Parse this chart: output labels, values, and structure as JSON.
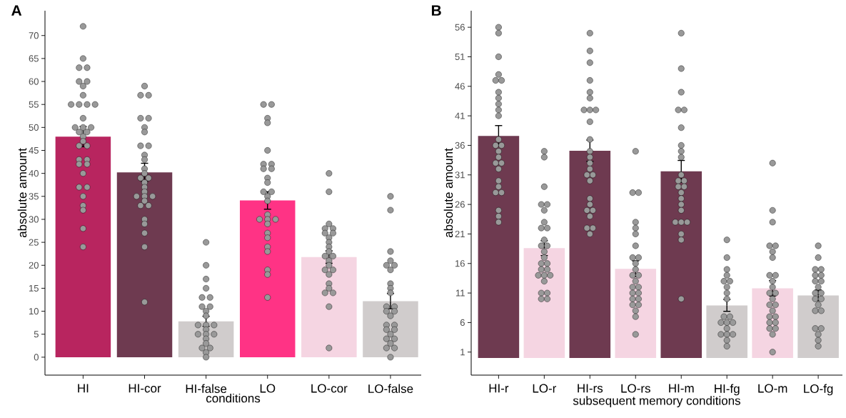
{
  "chart_data": [
    {
      "type": "bar",
      "title": "A",
      "xlabel": "conditions",
      "ylabel": "absolute amount",
      "categories": [
        "HI",
        "HI-cor",
        "HI-false",
        "LO",
        "LO-cor",
        "LO-false"
      ],
      "ylim": [
        -3.9,
        75.4
      ],
      "yticks": [
        0,
        5,
        10,
        15,
        20,
        25,
        30,
        35,
        40,
        45,
        50,
        55,
        60,
        65,
        70
      ],
      "series": [
        {
          "type": "bar",
          "values": [
            48,
            40.2,
            7.8,
            34.1,
            21.8,
            12.2
          ],
          "colors": [
            "#b8255f",
            "#6e3a50",
            "#d0cccc",
            "#ff3385",
            "#f5d5e2",
            "#d0cccc"
          ],
          "errors": [
            2.2,
            2,
            1.1,
            1.9,
            1.35,
            1.65
          ]
        },
        {
          "type": "scatter",
          "color": "#999999",
          "marker": "circle",
          "x": [
            "HI",
            "HI",
            "HI",
            "HI",
            "HI",
            "HI",
            "HI",
            "HI",
            "HI",
            "HI",
            "HI",
            "HI",
            "HI",
            "HI",
            "HI",
            "HI",
            "HI",
            "HI",
            "HI",
            "HI",
            "HI",
            "HI",
            "HI",
            "HI",
            "HI",
            "HI",
            "HI",
            "HI",
            "HI",
            "HI",
            "HI",
            "HI",
            "HI",
            "HI",
            "HI-cor",
            "HI-cor",
            "HI-cor",
            "HI-cor",
            "HI-cor",
            "HI-cor",
            "HI-cor",
            "HI-cor",
            "HI-cor",
            "HI-cor",
            "HI-cor",
            "HI-cor",
            "HI-cor",
            "HI-cor",
            "HI-cor",
            "HI-cor",
            "HI-cor",
            "HI-cor",
            "HI-cor",
            "HI-cor",
            "HI-cor",
            "HI-cor",
            "HI-cor",
            "HI-cor",
            "HI-cor",
            "HI-cor",
            "HI-cor",
            "HI-cor",
            "HI-cor",
            "HI-false",
            "HI-false",
            "HI-false",
            "HI-false",
            "HI-false",
            "HI-false",
            "HI-false",
            "HI-false",
            "HI-false",
            "HI-false",
            "HI-false",
            "HI-false",
            "HI-false",
            "HI-false",
            "HI-false",
            "HI-false",
            "HI-false",
            "HI-false",
            "HI-false",
            "HI-false",
            "HI-false",
            "HI-false",
            "HI-false",
            "LO",
            "LO",
            "LO",
            "LO",
            "LO",
            "LO",
            "LO",
            "LO",
            "LO",
            "LO",
            "LO",
            "LO",
            "LO",
            "LO",
            "LO",
            "LO",
            "LO",
            "LO",
            "LO",
            "LO",
            "LO",
            "LO",
            "LO",
            "LO",
            "LO",
            "LO",
            "LO",
            "LO-cor",
            "LO-cor",
            "LO-cor",
            "LO-cor",
            "LO-cor",
            "LO-cor",
            "LO-cor",
            "LO-cor",
            "LO-cor",
            "LO-cor",
            "LO-cor",
            "LO-cor",
            "LO-cor",
            "LO-cor",
            "LO-cor",
            "LO-cor",
            "LO-cor",
            "LO-cor",
            "LO-cor",
            "LO-cor",
            "LO-cor",
            "LO-cor",
            "LO-cor",
            "LO-cor",
            "LO-false",
            "LO-false",
            "LO-false",
            "LO-false",
            "LO-false",
            "LO-false",
            "LO-false",
            "LO-false",
            "LO-false",
            "LO-false",
            "LO-false",
            "LO-false",
            "LO-false",
            "LO-false",
            "LO-false",
            "LO-false",
            "LO-false",
            "LO-false",
            "LO-false",
            "LO-false",
            "LO-false",
            "LO-false",
            "LO-false",
            "LO-false",
            "LO-false",
            "LO-false"
          ],
          "values": [
            72,
            65,
            63,
            63,
            60,
            60,
            59,
            57,
            55,
            55,
            55,
            55,
            52,
            50,
            50,
            50,
            49,
            49,
            48,
            47,
            46,
            46,
            43,
            43,
            42,
            42,
            40,
            37,
            37,
            35,
            33,
            32,
            28,
            24,
            59,
            57,
            57,
            52,
            52,
            50,
            49,
            46,
            46,
            44,
            43,
            41,
            40,
            39,
            39,
            38,
            37,
            36,
            35,
            35,
            35,
            34,
            33,
            33,
            30,
            29,
            27,
            24,
            12,
            25,
            20,
            17,
            15,
            13,
            13,
            11,
            11,
            10,
            9,
            7,
            7,
            7,
            6,
            5,
            5,
            5,
            4,
            3,
            2,
            2,
            1,
            0,
            55,
            55,
            52,
            51,
            45,
            42,
            42,
            41,
            41,
            39,
            38,
            36,
            36,
            35,
            34,
            31,
            30,
            30,
            30,
            29,
            27,
            26,
            24,
            23,
            19,
            18,
            13,
            40,
            36,
            29,
            28,
            28,
            27,
            27,
            26,
            25,
            24,
            23,
            22,
            22,
            21,
            20,
            19,
            19,
            18,
            16,
            15,
            14,
            14,
            11,
            2,
            35,
            32,
            23,
            21,
            20,
            20,
            19,
            16,
            15,
            14,
            11,
            11,
            10,
            10,
            9,
            7,
            7,
            6,
            6,
            5,
            4,
            4,
            3,
            2,
            2,
            0
          ]
        }
      ]
    },
    {
      "type": "bar",
      "title": "B",
      "xlabel": "subsequent memory conditions",
      "ylabel": "absolute amount",
      "categories": [
        "HI-r",
        "LO-r",
        "HI-rs",
        "LO-rs",
        "HI-m",
        "HI-fg",
        "LO-m",
        "LO-fg"
      ],
      "ylim": [
        -2.9,
        58.8
      ],
      "yticks": [
        1,
        6,
        11,
        16,
        21,
        26,
        31,
        36,
        41,
        46,
        51,
        56
      ],
      "series": [
        {
          "type": "bar",
          "values": [
            37.6,
            18.6,
            35.1,
            15.1,
            31.6,
            8.9,
            11.8,
            10.6
          ],
          "colors": [
            "#6e3a50",
            "#f5d5e2",
            "#6e3a50",
            "#f5d5e2",
            "#6e3a50",
            "#d0cccc",
            "#f5d5e2",
            "#d0cccc"
          ],
          "errors": [
            1.75,
            1.25,
            1.8,
            1.35,
            1.85,
            1,
            1.3,
            0.9
          ]
        },
        {
          "type": "scatter",
          "color": "#999999",
          "marker": "circle",
          "x": [
            "HI-r",
            "HI-r",
            "HI-r",
            "HI-r",
            "HI-r",
            "HI-r",
            "HI-r",
            "HI-r",
            "HI-r",
            "HI-r",
            "HI-r",
            "HI-r",
            "HI-r",
            "HI-r",
            "HI-r",
            "HI-r",
            "HI-r",
            "HI-r",
            "HI-r",
            "HI-r",
            "HI-r",
            "HI-r",
            "HI-r",
            "HI-r",
            "HI-r",
            "HI-r",
            "LO-r",
            "LO-r",
            "LO-r",
            "LO-r",
            "LO-r",
            "LO-r",
            "LO-r",
            "LO-r",
            "LO-r",
            "LO-r",
            "LO-r",
            "LO-r",
            "LO-r",
            "LO-r",
            "LO-r",
            "LO-r",
            "LO-r",
            "LO-r",
            "LO-r",
            "LO-r",
            "LO-r",
            "LO-r",
            "LO-r",
            "LO-r",
            "LO-r",
            "LO-r",
            "HI-rs",
            "HI-rs",
            "HI-rs",
            "HI-rs",
            "HI-rs",
            "HI-rs",
            "HI-rs",
            "HI-rs",
            "HI-rs",
            "HI-rs",
            "HI-rs",
            "HI-rs",
            "HI-rs",
            "HI-rs",
            "HI-rs",
            "HI-rs",
            "HI-rs",
            "HI-rs",
            "HI-rs",
            "HI-rs",
            "HI-rs",
            "HI-rs",
            "HI-rs",
            "HI-rs",
            "HI-rs",
            "HI-rs",
            "LO-rs",
            "LO-rs",
            "LO-rs",
            "LO-rs",
            "LO-rs",
            "LO-rs",
            "LO-rs",
            "LO-rs",
            "LO-rs",
            "LO-rs",
            "LO-rs",
            "LO-rs",
            "LO-rs",
            "LO-rs",
            "LO-rs",
            "LO-rs",
            "LO-rs",
            "LO-rs",
            "LO-rs",
            "LO-rs",
            "LO-rs",
            "LO-rs",
            "LO-rs",
            "LO-rs",
            "LO-rs",
            "HI-m",
            "HI-m",
            "HI-m",
            "HI-m",
            "HI-m",
            "HI-m",
            "HI-m",
            "HI-m",
            "HI-m",
            "HI-m",
            "HI-m",
            "HI-m",
            "HI-m",
            "HI-m",
            "HI-m",
            "HI-m",
            "HI-m",
            "HI-m",
            "HI-m",
            "HI-m",
            "HI-m",
            "HI-m",
            "HI-m",
            "HI-m",
            "HI-fg",
            "HI-fg",
            "HI-fg",
            "HI-fg",
            "HI-fg",
            "HI-fg",
            "HI-fg",
            "HI-fg",
            "HI-fg",
            "HI-fg",
            "HI-fg",
            "HI-fg",
            "HI-fg",
            "HI-fg",
            "HI-fg",
            "HI-fg",
            "HI-fg",
            "HI-fg",
            "HI-fg",
            "HI-fg",
            "LO-m",
            "LO-m",
            "LO-m",
            "LO-m",
            "LO-m",
            "LO-m",
            "LO-m",
            "LO-m",
            "LO-m",
            "LO-m",
            "LO-m",
            "LO-m",
            "LO-m",
            "LO-m",
            "LO-m",
            "LO-m",
            "LO-m",
            "LO-m",
            "LO-m",
            "LO-m",
            "LO-m",
            "LO-m",
            "LO-m",
            "LO-m",
            "LO-m",
            "LO-fg",
            "LO-fg",
            "LO-fg",
            "LO-fg",
            "LO-fg",
            "LO-fg",
            "LO-fg",
            "LO-fg",
            "LO-fg",
            "LO-fg",
            "LO-fg",
            "LO-fg",
            "LO-fg",
            "LO-fg",
            "LO-fg",
            "LO-fg",
            "LO-fg",
            "LO-fg",
            "LO-fg",
            "LO-fg",
            "LO-fg"
          ],
          "values": [
            56,
            55,
            51,
            48,
            47,
            47,
            45,
            44,
            43,
            42,
            41,
            37,
            36,
            36,
            35,
            34,
            33,
            33,
            32,
            30,
            29,
            28,
            28,
            25,
            24,
            23,
            35,
            34,
            29,
            26,
            26,
            25,
            23,
            22,
            22,
            20,
            19,
            19,
            18,
            17,
            16,
            16,
            15,
            15,
            14,
            14,
            14,
            13,
            11,
            11,
            10,
            10,
            55,
            52,
            50,
            47,
            45,
            44,
            42,
            42,
            42,
            40,
            37,
            35,
            34,
            33,
            32,
            31,
            31,
            30,
            27,
            26,
            25,
            25,
            24,
            22,
            22,
            21,
            35,
            28,
            28,
            23,
            22,
            21,
            19,
            17,
            17,
            16,
            15,
            14,
            14,
            13,
            12,
            12,
            11,
            11,
            10,
            10,
            9,
            9,
            8,
            7,
            4,
            55,
            49,
            45,
            42,
            42,
            39,
            36,
            35,
            34,
            31,
            30,
            30,
            29,
            29,
            28,
            27,
            26,
            25,
            23,
            23,
            23,
            21,
            20,
            10,
            20,
            17,
            15,
            14,
            13,
            13,
            12,
            11,
            10,
            7,
            7,
            6,
            6,
            6,
            5,
            4,
            4,
            4,
            3,
            2,
            33,
            25,
            23,
            19,
            19,
            18,
            17,
            14,
            14,
            13,
            12,
            11,
            11,
            10,
            9,
            9,
            8,
            7,
            7,
            6,
            6,
            5,
            5,
            4,
            1,
            19,
            17,
            15,
            15,
            14,
            14,
            13,
            13,
            12,
            11,
            11,
            10,
            10,
            9,
            8,
            8,
            5,
            5,
            4,
            3,
            2
          ]
        }
      ]
    }
  ]
}
